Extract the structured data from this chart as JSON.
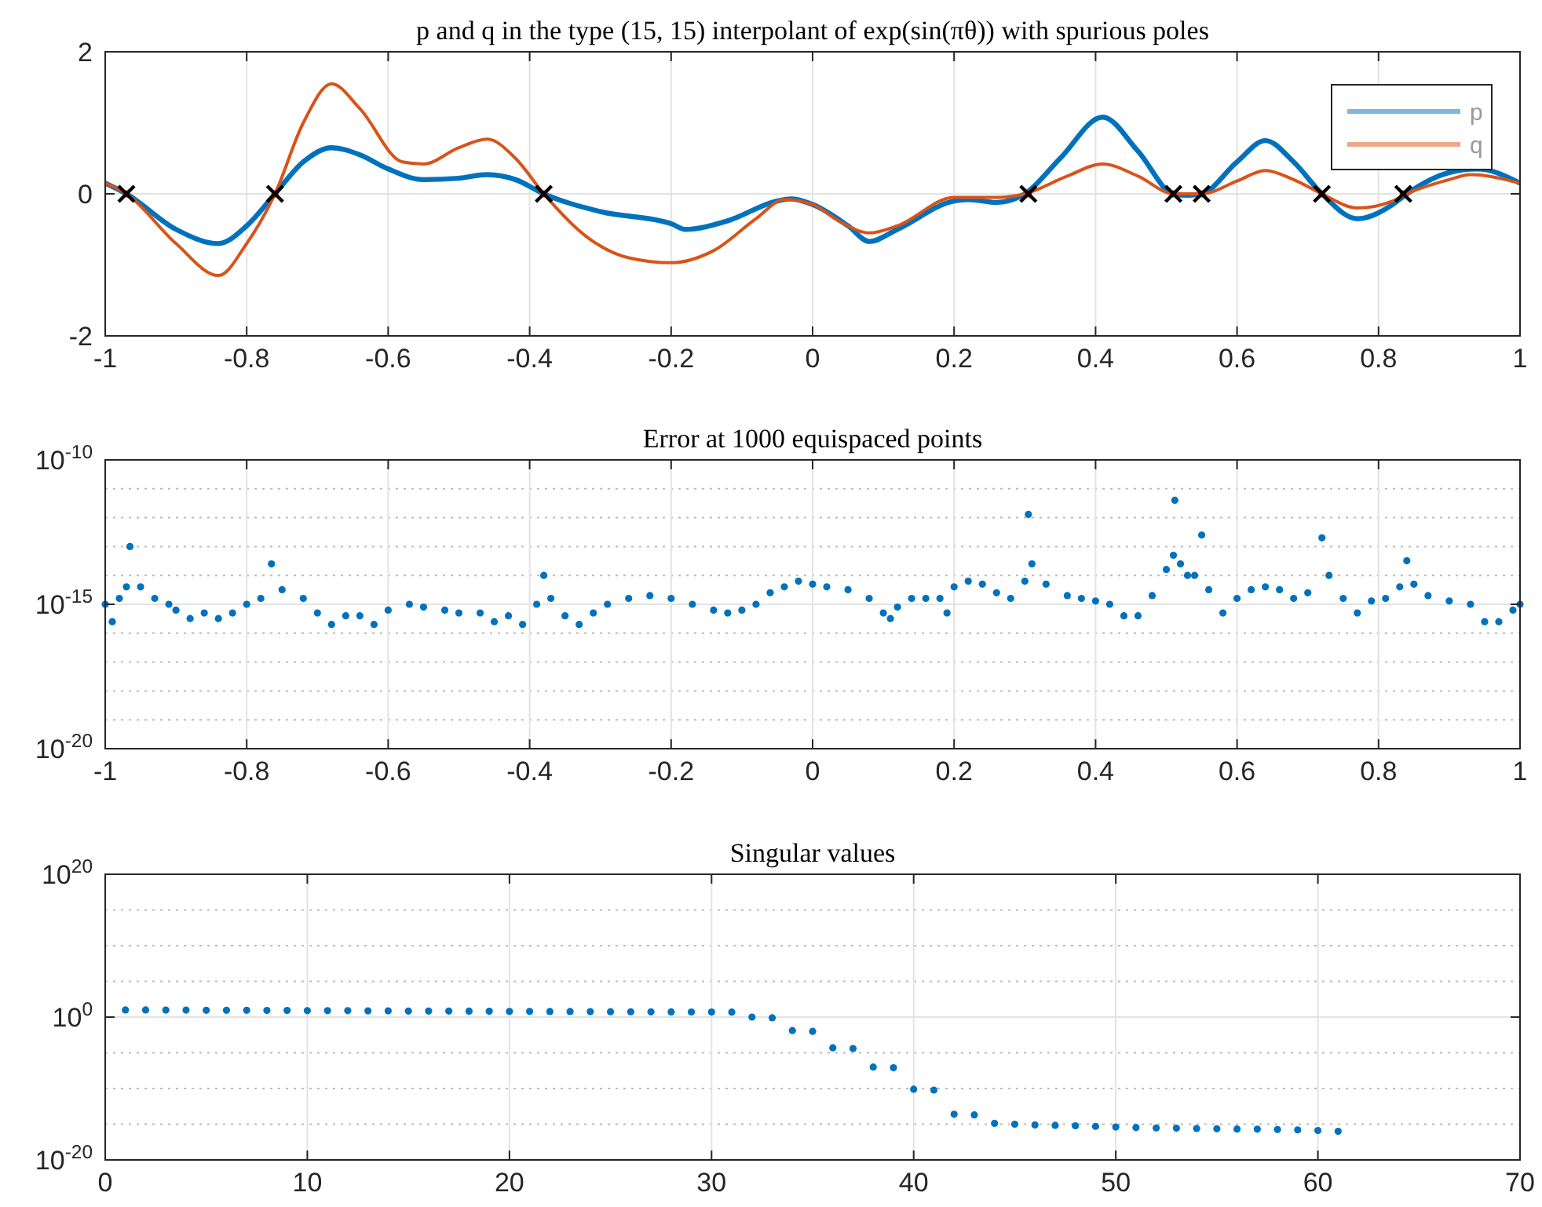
{
  "chart_data": [
    {
      "type": "line",
      "title": "p and q in the type (15, 15) interpolant of exp(sin(πθ)) with spurious poles",
      "xlim": [
        -1,
        1
      ],
      "xticks": [
        -1,
        -0.8,
        -0.6,
        -0.4,
        -0.2,
        0,
        0.2,
        0.4,
        0.6,
        0.8,
        1
      ],
      "ylim": [
        -2,
        2
      ],
      "yticks": [
        -2,
        0,
        2
      ],
      "grid": true,
      "legend": "top right",
      "series": [
        {
          "name": "p",
          "color": "#0072bd",
          "x": [
            -1,
            -0.97,
            -0.9,
            -0.84,
            -0.8,
            -0.76,
            -0.72,
            -0.68,
            -0.64,
            -0.6,
            -0.55,
            -0.5,
            -0.46,
            -0.42,
            -0.38,
            -0.3,
            -0.2,
            -0.18,
            -0.12,
            -0.05,
            -0.03,
            0,
            0.05,
            0.08,
            0.12,
            0.2,
            0.22,
            0.26,
            0.3,
            0.35,
            0.41,
            0.46,
            0.51,
            0.53,
            0.55,
            0.6,
            0.64,
            0.68,
            0.72,
            0.77,
            0.82,
            0.84,
            0.9,
            0.94,
            1
          ],
          "values": [
            0.15,
            0,
            -0.5,
            -0.7,
            -0.45,
            0,
            0.45,
            0.65,
            0.55,
            0.35,
            0.2,
            0.22,
            0.27,
            0.2,
            0,
            -0.25,
            -0.42,
            -0.5,
            -0.38,
            -0.1,
            -0.07,
            -0.15,
            -0.45,
            -0.67,
            -0.5,
            -0.1,
            -0.08,
            -0.12,
            0,
            0.5,
            1.08,
            0.6,
            0,
            -0.02,
            0,
            0.45,
            0.75,
            0.45,
            0,
            -0.35,
            -0.15,
            0,
            0.3,
            0.35,
            0.15
          ]
        },
        {
          "name": "q",
          "color": "#d95319",
          "x": [
            -1,
            -0.97,
            -0.9,
            -0.84,
            -0.8,
            -0.76,
            -0.72,
            -0.68,
            -0.64,
            -0.58,
            -0.55,
            -0.5,
            -0.46,
            -0.42,
            -0.38,
            -0.32,
            -0.26,
            -0.2,
            -0.14,
            -0.08,
            -0.04,
            0,
            0.04,
            0.08,
            0.12,
            0.2,
            0.26,
            0.3,
            0.36,
            0.41,
            0.46,
            0.51,
            0.53,
            0.55,
            0.6,
            0.64,
            0.68,
            0.72,
            0.77,
            0.82,
            0.84,
            0.9,
            0.93,
            1
          ],
          "values": [
            0.15,
            0,
            -0.7,
            -1.15,
            -0.7,
            0,
            1.0,
            1.55,
            1.2,
            0.45,
            0.42,
            0.65,
            0.77,
            0.5,
            0,
            -0.6,
            -0.9,
            -0.97,
            -0.8,
            -0.35,
            -0.08,
            -0.15,
            -0.4,
            -0.55,
            -0.45,
            -0.05,
            -0.05,
            0,
            0.25,
            0.42,
            0.25,
            0,
            0,
            0,
            0.18,
            0.33,
            0.2,
            0,
            -0.2,
            -0.1,
            0,
            0.2,
            0.27,
            0.15
          ]
        },
        {
          "type": "scatter",
          "marker": "circle",
          "color": "#ff0000",
          "x": [
            -0.97,
            -0.76,
            -0.38,
            0.305,
            0.51,
            0.55,
            0.72,
            0.835
          ],
          "values": [
            0,
            0,
            0,
            0,
            0,
            0,
            0,
            0
          ]
        },
        {
          "type": "scatter",
          "marker": "cross",
          "color": "#000000",
          "x": [
            -0.97,
            -0.76,
            -0.38,
            0.305,
            0.51,
            0.55,
            0.72,
            0.835
          ],
          "values": [
            0,
            0,
            0,
            0,
            0,
            0,
            0,
            0
          ]
        }
      ]
    },
    {
      "type": "scatter",
      "title": "Error at 1000 equispaced points",
      "log": "y",
      "marker": "circle",
      "xlim": [
        -1,
        1
      ],
      "xticks": [
        -1,
        -0.8,
        -0.6,
        -0.4,
        -0.2,
        0,
        0.2,
        0.4,
        0.6,
        0.8,
        1
      ],
      "ylim": [
        1e-20,
        1e-10
      ],
      "yticks": [
        {
          "value": 1e-20,
          "label": "10$^{-20}$"
        },
        {
          "value": 1e-15,
          "label": "10$^{-15}$"
        },
        {
          "value": 1e-10,
          "label": "10$^{-10}$"
        }
      ],
      "grid": true,
      "series": [
        {
          "color": "#0072bd",
          "x": [
            -1,
            -0.99,
            -0.98,
            -0.97,
            -0.965,
            -0.95,
            -0.93,
            -0.91,
            -0.9,
            -0.88,
            -0.86,
            -0.84,
            -0.82,
            -0.8,
            -0.78,
            -0.765,
            -0.75,
            -0.72,
            -0.7,
            -0.68,
            -0.66,
            -0.64,
            -0.62,
            -0.6,
            -0.57,
            -0.55,
            -0.52,
            -0.5,
            -0.47,
            -0.45,
            -0.43,
            -0.41,
            -0.39,
            -0.38,
            -0.37,
            -0.35,
            -0.33,
            -0.31,
            -0.29,
            -0.26,
            -0.23,
            -0.2,
            -0.17,
            -0.14,
            -0.12,
            -0.1,
            -0.08,
            -0.06,
            -0.04,
            -0.02,
            0,
            0.02,
            0.05,
            0.08,
            0.1,
            0.11,
            0.12,
            0.14,
            0.16,
            0.18,
            0.19,
            0.2,
            0.22,
            0.24,
            0.26,
            0.28,
            0.3,
            0.305,
            0.31,
            0.33,
            0.36,
            0.38,
            0.4,
            0.42,
            0.44,
            0.46,
            0.48,
            0.5,
            0.51,
            0.512,
            0.52,
            0.53,
            0.54,
            0.55,
            0.56,
            0.58,
            0.6,
            0.62,
            0.64,
            0.66,
            0.68,
            0.7,
            0.72,
            0.73,
            0.75,
            0.77,
            0.79,
            0.81,
            0.83,
            0.84,
            0.85,
            0.87,
            0.9,
            0.93,
            0.95,
            0.97,
            0.99,
            1
          ],
          "values": [
            1e-15,
            2.5e-16,
            1.6e-15,
            4e-15,
            1e-13,
            4e-15,
            1.6e-15,
            1e-15,
            6.3e-16,
            3.2e-16,
            5e-16,
            3.2e-16,
            5e-16,
            1e-15,
            1.6e-15,
            2.5e-14,
            3.2e-15,
            1.6e-15,
            5e-16,
            2e-16,
            4e-16,
            4e-16,
            2e-16,
            6.3e-16,
            1e-15,
            8e-16,
            6.3e-16,
            5e-16,
            5e-16,
            2.5e-16,
            4e-16,
            2e-16,
            1e-15,
            1e-14,
            1.6e-15,
            4e-16,
            2e-16,
            5e-16,
            1e-15,
            1.6e-15,
            2e-15,
            1.6e-15,
            1e-15,
            6.3e-16,
            5e-16,
            6.3e-16,
            1e-15,
            2.5e-15,
            4e-15,
            6.3e-15,
            5e-15,
            4e-15,
            3.2e-15,
            1.6e-15,
            5e-16,
            3.2e-16,
            8e-16,
            1.6e-15,
            1.6e-15,
            1.6e-15,
            5e-16,
            4e-15,
            6.3e-15,
            5e-15,
            2.5e-15,
            1.6e-15,
            6.3e-15,
            1.3e-12,
            2.5e-14,
            5e-15,
            2e-15,
            1.6e-15,
            1.3e-15,
            1e-15,
            4e-16,
            4e-16,
            2e-15,
            1.6e-14,
            5e-14,
            4e-12,
            2.5e-14,
            1e-14,
            1e-14,
            2.5e-13,
            3.2e-15,
            5e-16,
            1.6e-15,
            3.2e-15,
            4e-15,
            3.2e-15,
            1.6e-15,
            2.5e-15,
            2e-13,
            1e-14,
            1.6e-15,
            5e-16,
            1.3e-15,
            1.6e-15,
            4e-15,
            3.2e-14,
            5e-15,
            2e-15,
            1.3e-15,
            1e-15,
            2.5e-16,
            2.5e-16,
            6.3e-16,
            1e-15
          ]
        }
      ]
    },
    {
      "type": "scatter",
      "title": "Singular values",
      "log": "y",
      "marker": "circle",
      "xlim": [
        0,
        70
      ],
      "xticks": [
        0,
        10,
        20,
        30,
        40,
        50,
        60,
        70
      ],
      "ylim": [
        1e-20,
        1e+20
      ],
      "yticks": [
        {
          "value": 1e-20,
          "label": "10$^{-20}$"
        },
        {
          "value": 1,
          "label": "10$^{0}$"
        },
        {
          "value": 1e+20,
          "label": "10$^{20}$"
        }
      ],
      "grid": true,
      "series": [
        {
          "color": "#0072bd",
          "x": [
            1,
            2,
            3,
            4,
            5,
            6,
            7,
            8,
            9,
            10,
            11,
            12,
            13,
            14,
            15,
            16,
            17,
            18,
            19,
            20,
            21,
            22,
            23,
            24,
            25,
            26,
            27,
            28,
            29,
            30,
            31,
            32,
            33,
            34,
            35,
            36,
            37,
            38,
            39,
            40,
            41,
            42,
            43,
            44,
            45,
            46,
            47,
            48,
            49,
            50,
            51,
            52,
            53,
            54,
            55,
            56,
            57,
            58,
            59,
            60,
            61
          ],
          "values": [
            10,
            10,
            9.5,
            9.5,
            9,
            9,
            9,
            8.5,
            8.5,
            8,
            8,
            8,
            7.5,
            7.5,
            7,
            7,
            7,
            6.8,
            6.5,
            6.3,
            6.3,
            6,
            6,
            5.8,
            5.6,
            5.5,
            5.4,
            5.3,
            5.2,
            5.1,
            5,
            1,
            0.8,
            0.013,
            0.01,
            5e-05,
            4e-05,
            1e-07,
            8e-08,
            8e-11,
            6e-11,
            2.5e-14,
            2e-14,
            1.3e-15,
            1e-15,
            8e-16,
            7e-16,
            6e-16,
            5e-16,
            4e-16,
            3.5e-16,
            3e-16,
            2.8e-16,
            2.5e-16,
            2.3e-16,
            2.1e-16,
            2e-16,
            1.8e-16,
            1.6e-16,
            1.3e-16,
            1e-16
          ]
        }
      ]
    }
  ]
}
